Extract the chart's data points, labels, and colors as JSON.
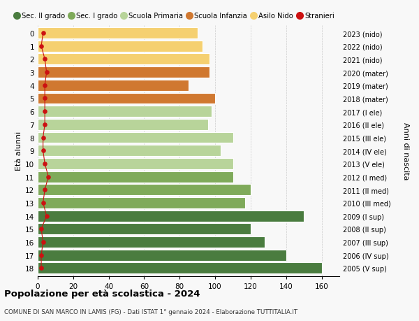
{
  "ages": [
    18,
    17,
    16,
    15,
    14,
    13,
    12,
    11,
    10,
    9,
    8,
    7,
    6,
    5,
    4,
    3,
    2,
    1,
    0
  ],
  "values": [
    160,
    140,
    128,
    120,
    150,
    117,
    120,
    110,
    110,
    103,
    110,
    96,
    98,
    100,
    85,
    97,
    97,
    93,
    90
  ],
  "stranieri": [
    2,
    2,
    3,
    2,
    5,
    3,
    4,
    6,
    4,
    3,
    3,
    4,
    4,
    4,
    4,
    5,
    4,
    2,
    3
  ],
  "right_labels": [
    "2005 (V sup)",
    "2006 (IV sup)",
    "2007 (III sup)",
    "2008 (II sup)",
    "2009 (I sup)",
    "2010 (III med)",
    "2011 (II med)",
    "2012 (I med)",
    "2013 (V ele)",
    "2014 (IV ele)",
    "2015 (III ele)",
    "2016 (II ele)",
    "2017 (I ele)",
    "2018 (mater)",
    "2019 (mater)",
    "2020 (mater)",
    "2021 (nido)",
    "2022 (nido)",
    "2023 (nido)"
  ],
  "bar_colors": [
    "#4a7c3f",
    "#4a7c3f",
    "#4a7c3f",
    "#4a7c3f",
    "#4a7c3f",
    "#7faa5a",
    "#7faa5a",
    "#7faa5a",
    "#b8d49a",
    "#b8d49a",
    "#b8d49a",
    "#b8d49a",
    "#b8d49a",
    "#d07830",
    "#d07830",
    "#d07830",
    "#f5d070",
    "#f5d070",
    "#f5d070"
  ],
  "legend_labels": [
    "Sec. II grado",
    "Sec. I grado",
    "Scuola Primaria",
    "Scuola Infanzia",
    "Asilo Nido",
    "Stranieri"
  ],
  "legend_colors": [
    "#4a7c3f",
    "#7faa5a",
    "#b8d49a",
    "#d07830",
    "#f5d070",
    "#cc1111"
  ],
  "title": "Popolazione per età scolastica - 2024",
  "subtitle": "COMUNE DI SAN MARCO IN LAMIS (FG) - Dati ISTAT 1° gennaio 2024 - Elaborazione TUTTITALIA.IT",
  "ylabel_left": "Età alunni",
  "ylabel_right": "Anni di nascita",
  "xlim": [
    0,
    170
  ],
  "xticks": [
    0,
    20,
    40,
    60,
    80,
    100,
    120,
    140,
    160
  ],
  "stranieri_color": "#cc1111",
  "bg_color": "#f8f8f8",
  "bar_edge_color": "white",
  "grid_color": "#cccccc"
}
